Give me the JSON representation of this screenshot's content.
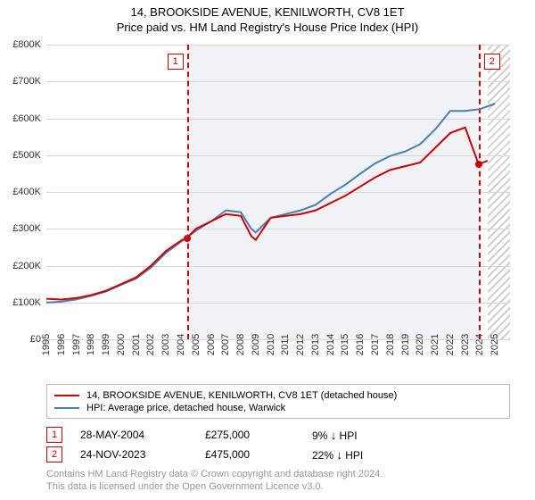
{
  "title": "14, BROOKSIDE AVENUE, KENILWORTH, CV8 1ET",
  "subtitle": "Price paid vs. HM Land Registry's House Price Index (HPI)",
  "chart": {
    "type": "line",
    "x_min_year": 1995,
    "x_max_year": 2026,
    "x_tick_years": [
      1995,
      1996,
      1997,
      1998,
      1999,
      2000,
      2001,
      2002,
      2003,
      2004,
      2005,
      2006,
      2007,
      2008,
      2009,
      2010,
      2011,
      2012,
      2013,
      2014,
      2015,
      2016,
      2017,
      2018,
      2019,
      2020,
      2021,
      2022,
      2023,
      2024,
      2025
    ],
    "y_min": 0,
    "y_max": 800,
    "y_ticks": [
      0,
      100,
      200,
      300,
      400,
      500,
      600,
      700,
      800
    ],
    "y_tick_labels": [
      "£0",
      "£100K",
      "£200K",
      "£300K",
      "£400K",
      "£500K",
      "£600K",
      "£700K",
      "£800K"
    ],
    "grid_color": "#d6d6d6",
    "background_color": "#ffffff",
    "shaded_band_color": "#f0f2f5",
    "shaded_from_year": 2004.4,
    "shaded_to_year": 2023.9,
    "hatch_from_year": 2024.5,
    "series": [
      {
        "name": "14, BROOKSIDE AVENUE, KENILWORTH, CV8 1ET (detached house)",
        "color": "#cc0000",
        "width": 2,
        "points": [
          [
            1995.0,
            110
          ],
          [
            1996.0,
            108
          ],
          [
            1997.0,
            112
          ],
          [
            1998.0,
            120
          ],
          [
            1999.0,
            132
          ],
          [
            2000.0,
            150
          ],
          [
            2001.0,
            168
          ],
          [
            2002.0,
            200
          ],
          [
            2003.0,
            240
          ],
          [
            2004.0,
            268
          ],
          [
            2004.4,
            275
          ],
          [
            2005.0,
            300
          ],
          [
            2006.0,
            320
          ],
          [
            2007.0,
            340
          ],
          [
            2008.0,
            335
          ],
          [
            2008.7,
            280
          ],
          [
            2009.0,
            270
          ],
          [
            2009.5,
            300
          ],
          [
            2010.0,
            330
          ],
          [
            2011.0,
            335
          ],
          [
            2012.0,
            340
          ],
          [
            2013.0,
            350
          ],
          [
            2014.0,
            370
          ],
          [
            2015.0,
            390
          ],
          [
            2016.0,
            415
          ],
          [
            2017.0,
            440
          ],
          [
            2018.0,
            460
          ],
          [
            2019.0,
            470
          ],
          [
            2020.0,
            480
          ],
          [
            2021.0,
            520
          ],
          [
            2022.0,
            560
          ],
          [
            2023.0,
            575
          ],
          [
            2023.9,
            475
          ],
          [
            2024.2,
            480
          ],
          [
            2024.5,
            485
          ]
        ]
      },
      {
        "name": "HPI: Average price, detached house, Warwick",
        "color": "#4a7fb5",
        "width": 2,
        "points": [
          [
            1995.0,
            100
          ],
          [
            1996.0,
            102
          ],
          [
            1997.0,
            108
          ],
          [
            1998.0,
            118
          ],
          [
            1999.0,
            130
          ],
          [
            2000.0,
            148
          ],
          [
            2001.0,
            165
          ],
          [
            2002.0,
            195
          ],
          [
            2003.0,
            235
          ],
          [
            2004.0,
            265
          ],
          [
            2005.0,
            295
          ],
          [
            2006.0,
            320
          ],
          [
            2007.0,
            350
          ],
          [
            2008.0,
            345
          ],
          [
            2008.7,
            300
          ],
          [
            2009.0,
            290
          ],
          [
            2010.0,
            330
          ],
          [
            2011.0,
            340
          ],
          [
            2012.0,
            350
          ],
          [
            2013.0,
            365
          ],
          [
            2014.0,
            395
          ],
          [
            2015.0,
            420
          ],
          [
            2016.0,
            450
          ],
          [
            2017.0,
            478
          ],
          [
            2018.0,
            498
          ],
          [
            2019.0,
            510
          ],
          [
            2020.0,
            530
          ],
          [
            2021.0,
            570
          ],
          [
            2022.0,
            620
          ],
          [
            2023.0,
            620
          ],
          [
            2024.0,
            625
          ],
          [
            2025.0,
            640
          ]
        ]
      }
    ],
    "markers": [
      {
        "n": "1",
        "year": 2004.4,
        "value": 275,
        "box_y": 70,
        "color": "#cc0000"
      },
      {
        "n": "2",
        "year": 2023.9,
        "value": 475,
        "box_y": 70,
        "color": "#cc0000"
      }
    ]
  },
  "legend": {
    "rows": [
      {
        "color": "#cc0000",
        "label": "14, BROOKSIDE AVENUE, KENILWORTH, CV8 1ET (detached house)"
      },
      {
        "color": "#4a7fb5",
        "label": "HPI: Average price, detached house, Warwick"
      }
    ]
  },
  "sales": [
    {
      "n": "1",
      "date": "28-MAY-2004",
      "price": "£275,000",
      "diff": "9%",
      "dir": "↓",
      "vs": "HPI"
    },
    {
      "n": "2",
      "date": "24-NOV-2023",
      "price": "£475,000",
      "diff": "22%",
      "dir": "↓",
      "vs": "HPI"
    }
  ],
  "footnote_line1": "Contains HM Land Registry data © Crown copyright and database right 2024.",
  "footnote_line2": "This data is licensed under the Open Government Licence v3.0."
}
